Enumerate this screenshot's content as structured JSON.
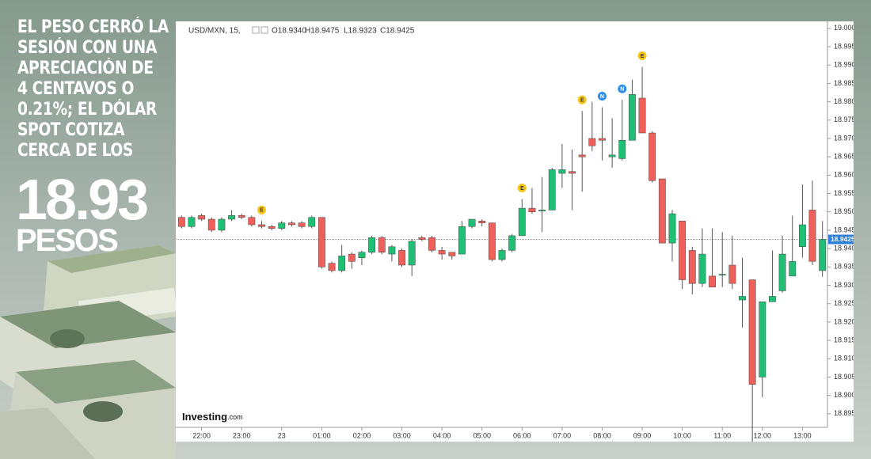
{
  "headline": [
    "EL PESO CERRÓ LA",
    "SESIÓN CON UNA",
    "APRECIACIÓN DE",
    "4 CENTAVOS O",
    "0.21%; EL DÓLAR",
    "SPOT COTIZA",
    "CERCA DE LOS"
  ],
  "big_number": "18.93",
  "unit": "PESOS",
  "chart_data": {
    "type": "candlestick",
    "header": {
      "symbol": "USD/MXN, 15,",
      "ohlc": [
        "O18.9340",
        "H18.9475",
        "L18.9323",
        "C18.9425"
      ]
    },
    "brand": {
      "name": "Investing",
      "suffix": ".com"
    },
    "up_color": "#1fbf75",
    "down_color": "#f0605a",
    "categories": [
      null,
      null,
      "22:00",
      null,
      null,
      null,
      "23:00",
      null,
      null,
      null,
      "23",
      null,
      null,
      null,
      "01:00",
      null,
      null,
      null,
      "02:00",
      null,
      null,
      null,
      "03:00",
      null,
      null,
      null,
      "04:00",
      null,
      null,
      null,
      "05:00",
      null,
      null,
      null,
      "06:00",
      null,
      null,
      null,
      "07:00",
      null,
      null,
      null,
      "08:00",
      null,
      null,
      null,
      "09:00",
      null,
      null,
      null,
      "10:00",
      null,
      null,
      null,
      "11:00",
      null,
      null,
      null,
      "12:00",
      null,
      null,
      null,
      "13:00",
      null,
      null
    ],
    "open": [
      18.9485,
      18.946,
      18.949,
      18.948,
      18.945,
      18.948,
      18.949,
      18.9485,
      18.9465,
      18.946,
      18.9455,
      18.947,
      18.947,
      18.946,
      18.9485,
      18.936,
      18.934,
      18.9385,
      18.9375,
      18.939,
      18.943,
      18.9385,
      18.9395,
      18.9355,
      18.943,
      18.943,
      18.9395,
      18.939,
      18.9385,
      18.946,
      18.9475,
      18.947,
      18.937,
      18.9395,
      18.9435,
      18.951,
      18.9505,
      18.9505,
      18.9605,
      18.961,
      18.9655,
      18.97,
      18.97,
      18.965,
      18.9645,
      18.9695,
      18.981,
      18.9715,
      18.959,
      18.9415,
      18.9475,
      18.9395,
      18.9305,
      18.9325,
      18.933,
      18.9355,
      18.926,
      18.9315,
      18.905,
      18.9255,
      18.9285,
      18.9325,
      18.9405,
      18.9505,
      18.934
    ],
    "high": [
      18.949,
      18.949,
      18.9495,
      18.9485,
      18.9485,
      18.9505,
      18.9495,
      18.949,
      18.9475,
      18.9465,
      18.9475,
      18.9475,
      18.9475,
      18.949,
      18.9485,
      18.9365,
      18.941,
      18.939,
      18.9395,
      18.9435,
      18.9435,
      18.941,
      18.94,
      18.9425,
      18.9435,
      18.9435,
      18.9405,
      18.939,
      18.9475,
      18.948,
      18.948,
      18.947,
      18.94,
      18.944,
      18.9535,
      18.9565,
      18.9595,
      18.962,
      18.9685,
      18.967,
      18.9775,
      18.98,
      18.9785,
      18.9755,
      18.9805,
      18.986,
      18.9895,
      18.972,
      18.959,
      18.9505,
      18.9475,
      18.9405,
      18.9455,
      18.9455,
      18.9445,
      18.9435,
      18.9375,
      18.9315,
      18.9255,
      18.9395,
      18.9435,
      18.949,
      18.9575,
      18.9585,
      18.9475
    ],
    "low": [
      18.9455,
      18.9455,
      18.9475,
      18.9445,
      18.9445,
      18.9475,
      18.948,
      18.946,
      18.9455,
      18.945,
      18.945,
      18.946,
      18.9455,
      18.9455,
      18.9345,
      18.9335,
      18.9335,
      18.9345,
      18.9355,
      18.9385,
      18.9385,
      18.9365,
      18.935,
      18.9325,
      18.942,
      18.939,
      18.937,
      18.937,
      18.9385,
      18.9455,
      18.946,
      18.9365,
      18.9365,
      18.939,
      18.9435,
      18.9495,
      18.9445,
      18.9505,
      18.9565,
      18.9505,
      18.9555,
      18.9665,
      18.964,
      18.962,
      18.964,
      18.9695,
      18.9715,
      18.958,
      18.9415,
      18.9365,
      18.929,
      18.9275,
      18.9295,
      18.9295,
      18.9295,
      18.929,
      18.9185,
      18.8865,
      18.8995,
      18.9255,
      18.928,
      18.9325,
      18.9375,
      18.9355,
      18.9323
    ],
    "close": [
      18.946,
      18.9485,
      18.948,
      18.945,
      18.948,
      18.949,
      18.9485,
      18.9465,
      18.946,
      18.9455,
      18.947,
      18.9465,
      18.946,
      18.9485,
      18.935,
      18.934,
      18.938,
      18.9365,
      18.939,
      18.943,
      18.939,
      18.9405,
      18.9355,
      18.942,
      18.9425,
      18.9395,
      18.9385,
      18.938,
      18.946,
      18.948,
      18.947,
      18.937,
      18.9395,
      18.9435,
      18.951,
      18.95,
      18.9505,
      18.9615,
      18.9615,
      18.9605,
      18.965,
      18.968,
      18.9695,
      18.9655,
      18.9695,
      18.982,
      18.9715,
      18.9585,
      18.9415,
      18.9495,
      18.9315,
      18.9305,
      18.9385,
      18.9295,
      18.933,
      18.9305,
      18.927,
      18.903,
      18.9255,
      18.927,
      18.9385,
      18.9365,
      18.9465,
      18.9365,
      18.9425
    ],
    "events": [
      null,
      null,
      null,
      null,
      null,
      null,
      null,
      null,
      "E",
      null,
      null,
      null,
      null,
      null,
      null,
      null,
      null,
      null,
      null,
      null,
      null,
      null,
      null,
      null,
      null,
      null,
      null,
      null,
      null,
      null,
      null,
      null,
      null,
      null,
      "E",
      null,
      null,
      null,
      null,
      null,
      "E",
      null,
      "N",
      null,
      "N",
      null,
      "E",
      null,
      null,
      null,
      null,
      null,
      null,
      null,
      null,
      null,
      null,
      null,
      null,
      null,
      null,
      null,
      null,
      null,
      null
    ],
    "last_price": {
      "value": 18.9425,
      "label": "18.9425"
    },
    "ylim": [
      18.8913,
      19.0019
    ],
    "yticks": [
      {
        "value": 19,
        "label": "19.0000"
      },
      {
        "value": 18.995,
        "label": "18.9950"
      },
      {
        "value": 18.99,
        "label": "18.9900"
      },
      {
        "value": 18.985,
        "label": "18.9850"
      },
      {
        "value": 18.98,
        "label": "18.9800"
      },
      {
        "value": 18.975,
        "label": "18.9750"
      },
      {
        "value": 18.97,
        "label": "18.9700"
      },
      {
        "value": 18.965,
        "label": "18.9650"
      },
      {
        "value": 18.96,
        "label": "18.9600"
      },
      {
        "value": 18.955,
        "label": "18.9550"
      },
      {
        "value": 18.95,
        "label": "18.9500"
      },
      {
        "value": 18.945,
        "label": "18.9450"
      },
      {
        "value": 18.94,
        "label": "18.9400"
      },
      {
        "value": 18.935,
        "label": "18.9350"
      },
      {
        "value": 18.93,
        "label": "18.9300"
      },
      {
        "value": 18.925,
        "label": "18.9250"
      },
      {
        "value": 18.92,
        "label": "18.9200"
      },
      {
        "value": 18.915,
        "label": "18.9150"
      },
      {
        "value": 18.91,
        "label": "18.9100"
      },
      {
        "value": 18.905,
        "label": "18.9050"
      },
      {
        "value": 18.9,
        "label": "18.9000"
      },
      {
        "value": 18.895,
        "label": "18.8950"
      }
    ]
  }
}
